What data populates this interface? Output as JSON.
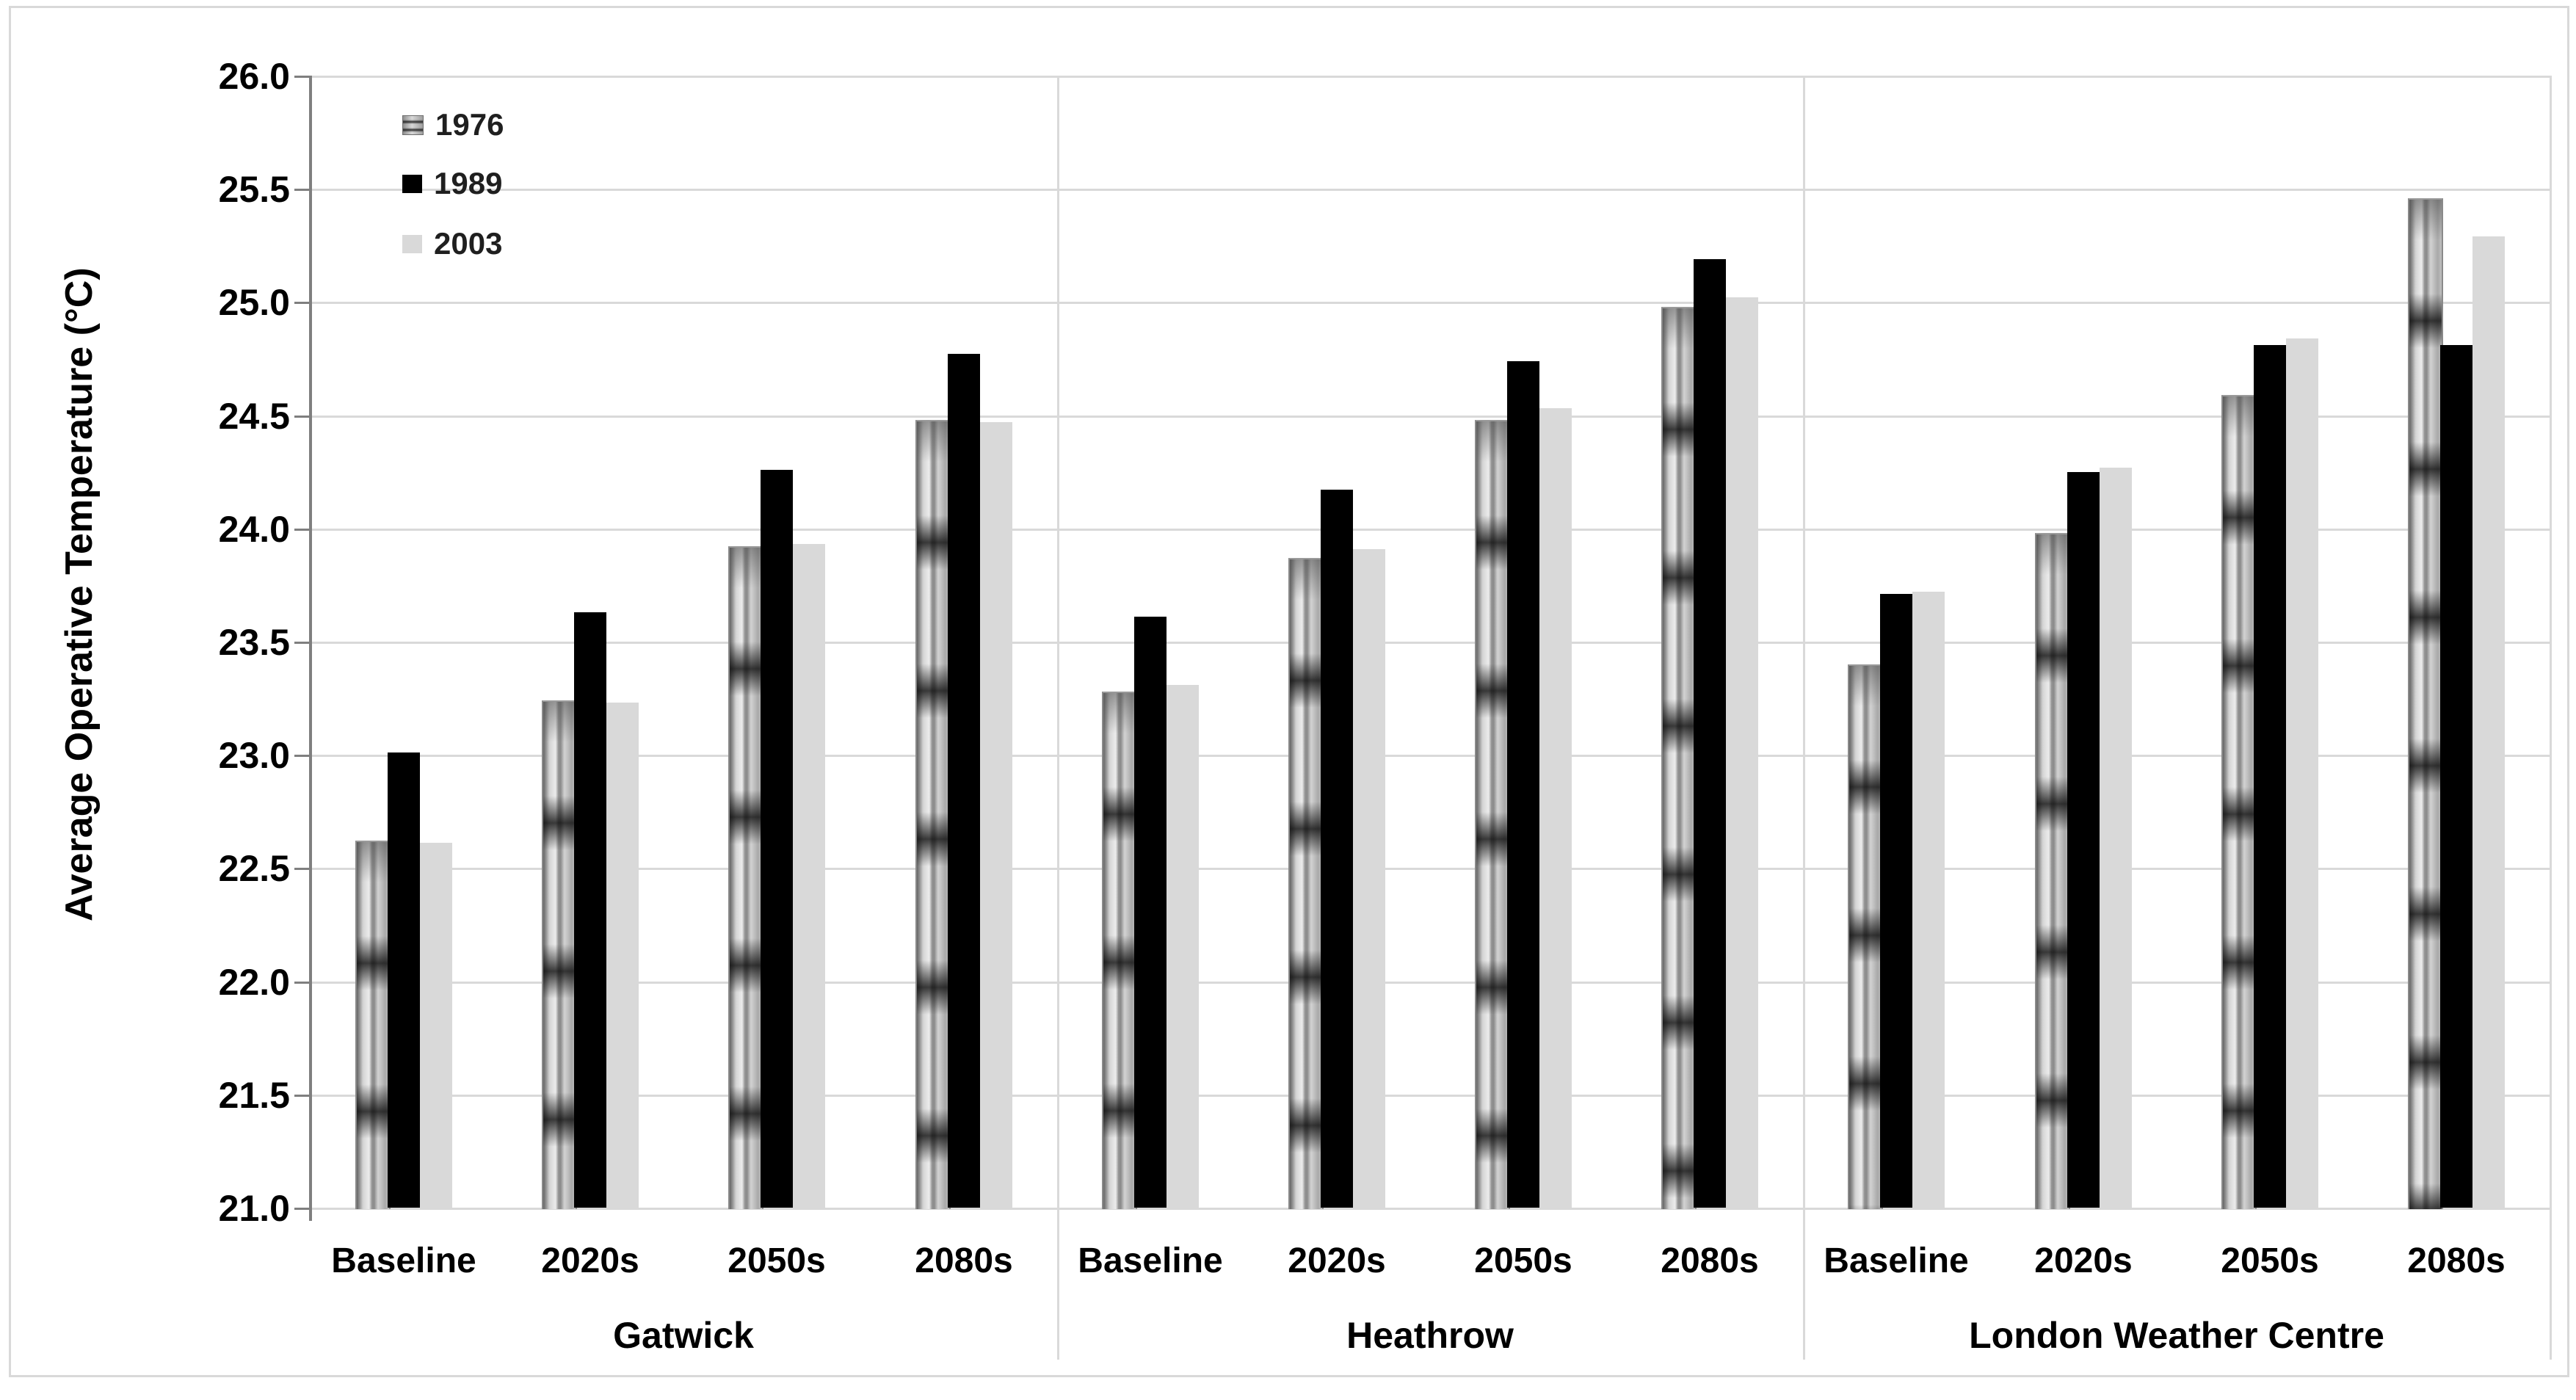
{
  "figure": {
    "background": "#ffffff",
    "frame_color": "#d9d9d9",
    "gridline_color": "#d9d9d9",
    "axis_line_color": "#7f7f7f"
  },
  "chart_data": {
    "type": "bar",
    "title": "",
    "ylabel": "Average Operative Temperature (°C)",
    "xlabel": "",
    "ylim": [
      21.0,
      26.0
    ],
    "ytick_step": 0.5,
    "ytick_labels": [
      "26.0",
      "25.5",
      "25.0",
      "24.5",
      "24.0",
      "23.5",
      "23.0",
      "22.5",
      "22.0",
      "21.5",
      "21.0"
    ],
    "grid": true,
    "legend_position": "top-left-inside",
    "categories": [
      "Baseline",
      "2020s",
      "2050s",
      "2080s"
    ],
    "groups": [
      "Gatwick",
      "Heathrow",
      "London Weather Centre"
    ],
    "series": [
      {
        "name": "1976",
        "fill": "textured-gray"
      },
      {
        "name": "1989",
        "fill": "solid-black",
        "color": "#000000"
      },
      {
        "name": "2003",
        "fill": "solid-light-gray",
        "color": "#d9d9d9"
      }
    ],
    "values": [
      {
        "group": "Gatwick",
        "data": [
          [
            22.62,
            23.01,
            22.61
          ],
          [
            23.24,
            23.63,
            23.23
          ],
          [
            23.92,
            24.26,
            23.93
          ],
          [
            24.48,
            24.77,
            24.47
          ]
        ]
      },
      {
        "group": "Heathrow",
        "data": [
          [
            23.28,
            23.61,
            23.31
          ],
          [
            23.87,
            24.17,
            23.91
          ],
          [
            24.48,
            24.74,
            24.53
          ],
          [
            24.98,
            25.19,
            25.02
          ]
        ]
      },
      {
        "group": "London Weather Centre",
        "data": [
          [
            23.4,
            23.71,
            23.72
          ],
          [
            23.98,
            24.25,
            24.27
          ],
          [
            24.59,
            24.81,
            24.84
          ],
          [
            25.46,
            24.81,
            25.29
          ]
        ]
      }
    ]
  },
  "legend": {
    "items": [
      {
        "label": "1976"
      },
      {
        "label": "1989"
      },
      {
        "label": "2003"
      }
    ]
  }
}
